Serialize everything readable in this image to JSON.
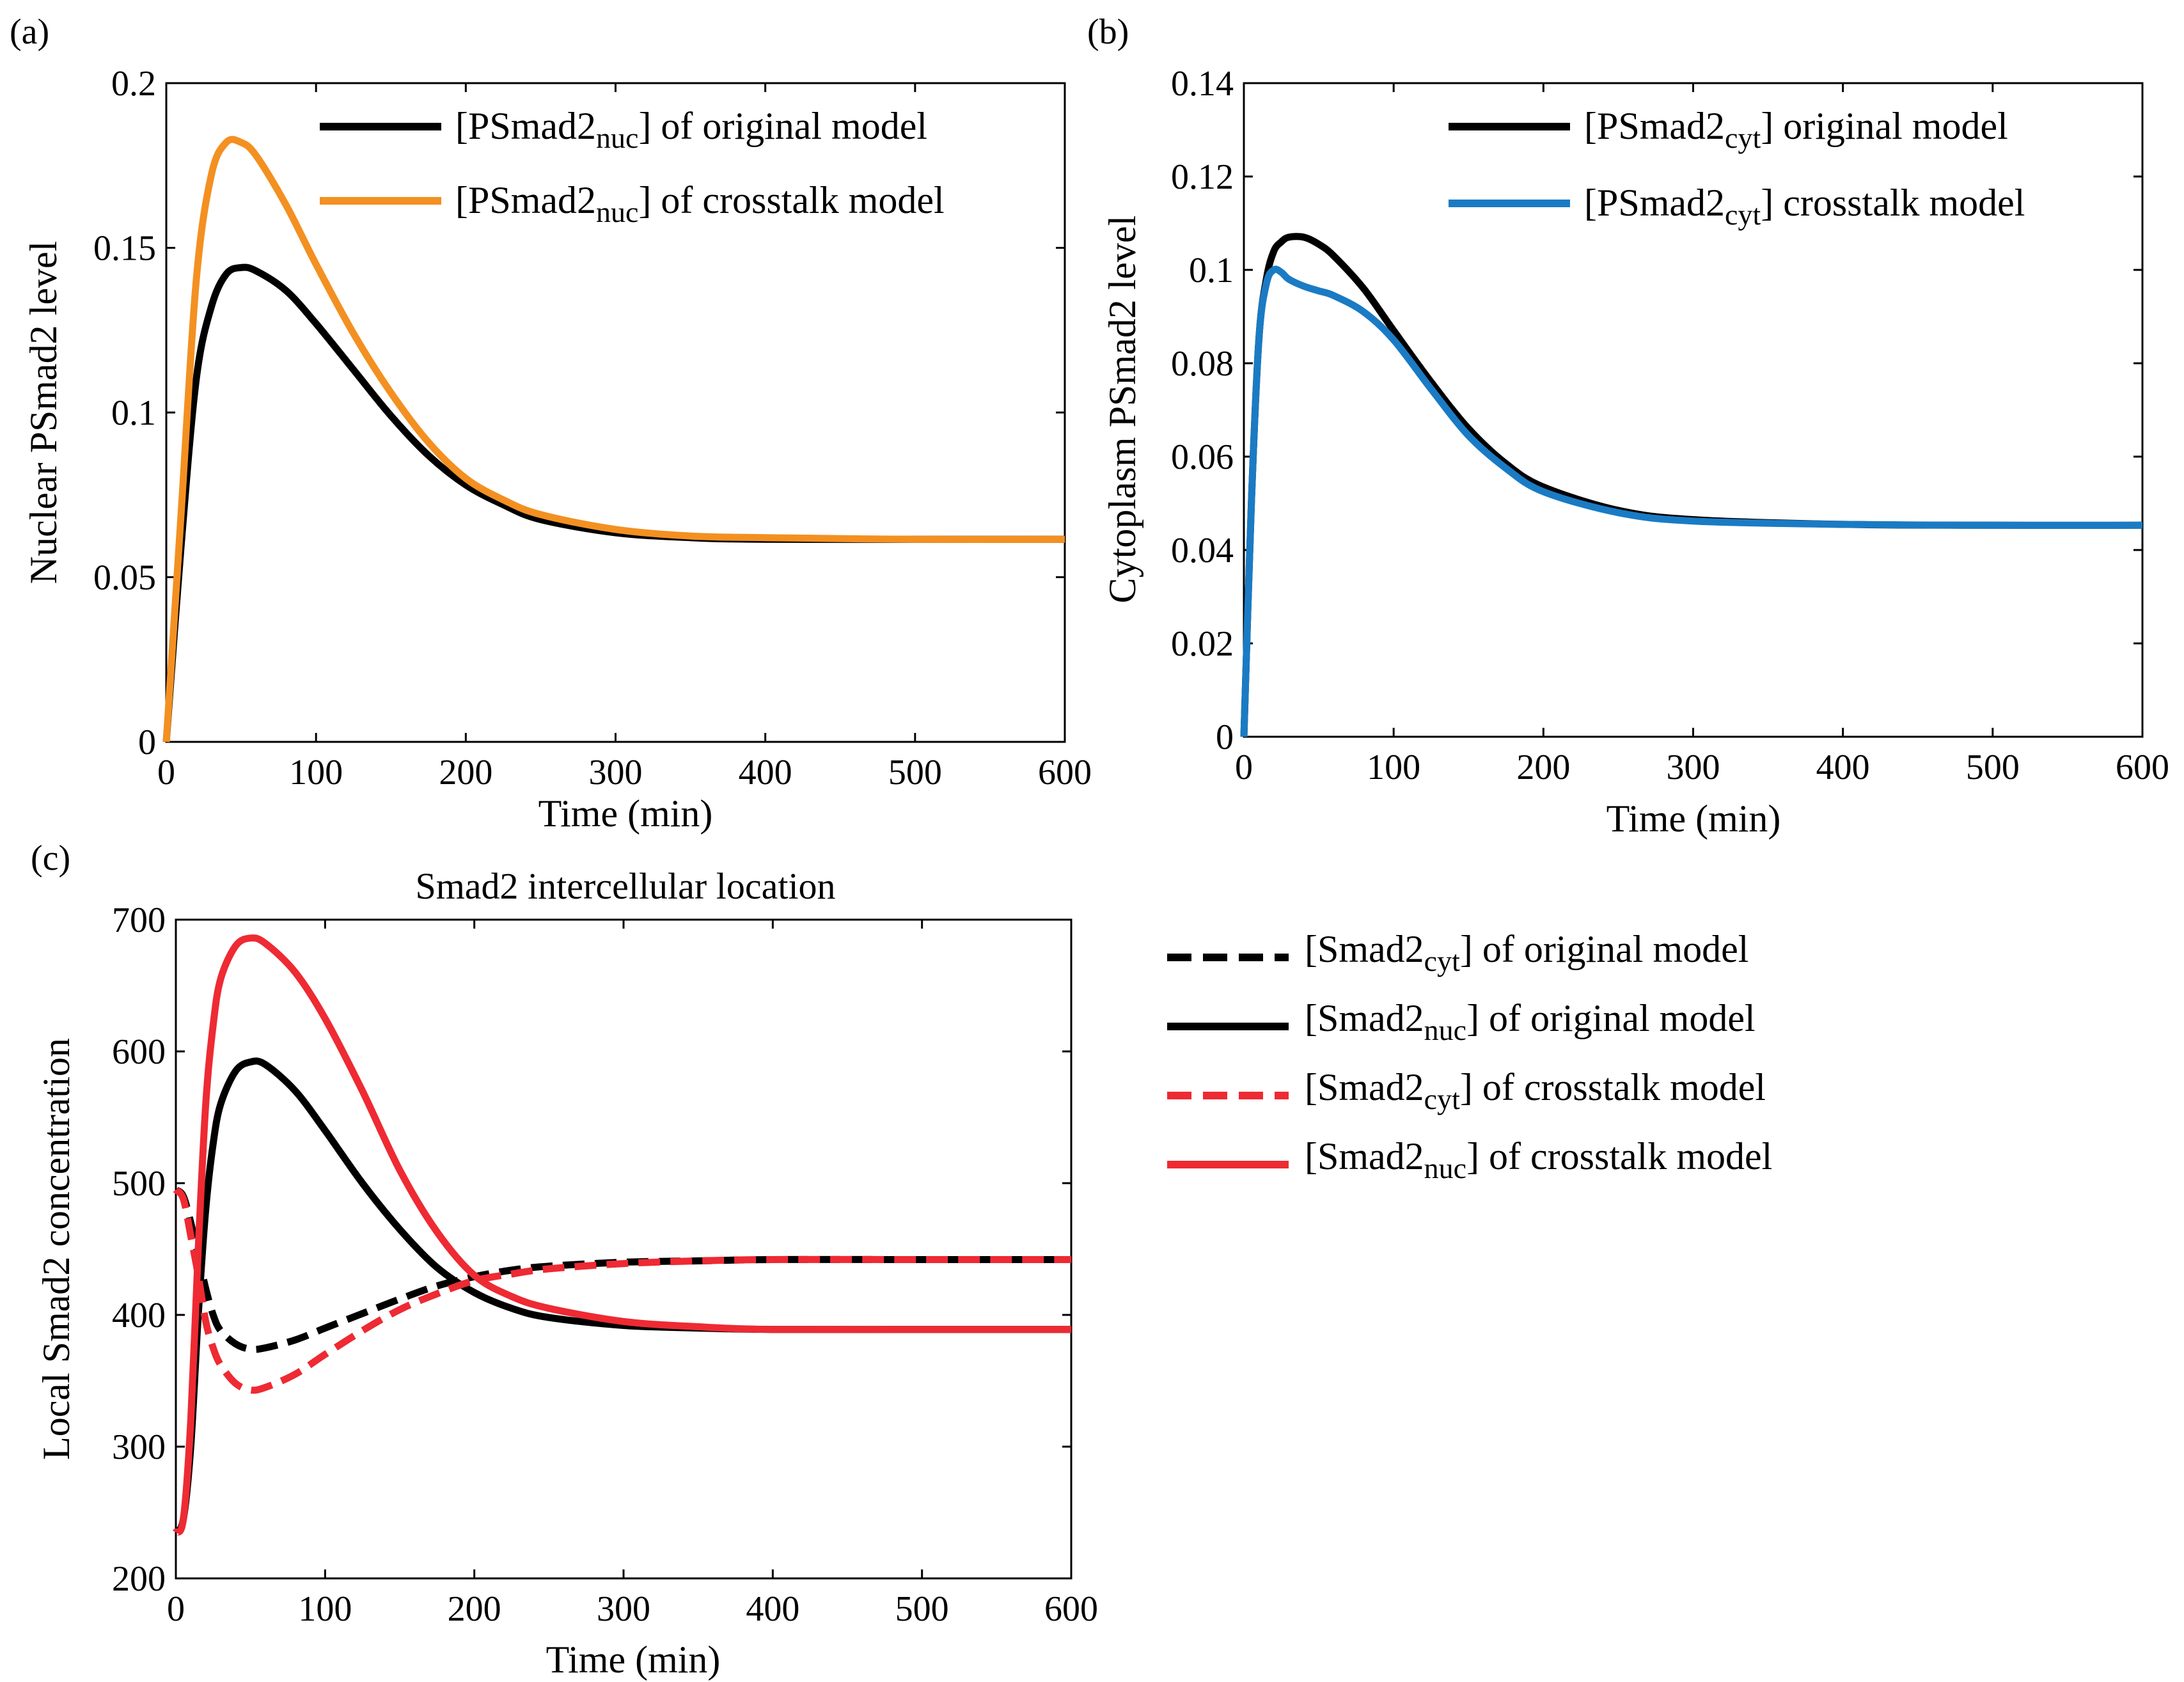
{
  "figure": {
    "panels": [
      {
        "id": "a",
        "panel_label": "(a)",
        "title": "",
        "xlabel": "Time (min)",
        "ylabel": "Nuclear PSmad2 level",
        "legend": [
          {
            "pre": "[PSmad2",
            "sub": "nuc",
            "post": "] of original model"
          },
          {
            "pre": "[PSmad2",
            "sub": "nuc",
            "post": "] of crosstalk model"
          }
        ]
      },
      {
        "id": "b",
        "panel_label": "(b)",
        "title": "",
        "xlabel": "Time (min)",
        "ylabel": "Cytoplasm PSmad2 level",
        "legend": [
          {
            "pre": "[PSmad2",
            "sub": "cyt",
            "post": "] original model"
          },
          {
            "pre": "[PSmad2",
            "sub": "cyt",
            "post": "] crosstalk model"
          }
        ]
      },
      {
        "id": "c",
        "panel_label": "(c)",
        "title": "Smad2 intercellular location",
        "xlabel": "Time (min)",
        "ylabel": "Local Smad2 concentration",
        "legend": [
          {
            "pre": "[Smad2",
            "sub": "cyt",
            "post": "] of original model"
          },
          {
            "pre": "[Smad2",
            "sub": "nuc",
            "post": "] of original model"
          },
          {
            "pre": "[Smad2",
            "sub": "cyt",
            "post": "] of crosstalk model"
          },
          {
            "pre": "[Smad2",
            "sub": "nuc",
            "post": "] of crosstalk model"
          }
        ]
      }
    ]
  },
  "chart_data": [
    {
      "panel": "a",
      "type": "line",
      "xlim": [
        0,
        600
      ],
      "ylim": [
        0,
        0.2
      ],
      "xticks": [
        0,
        100,
        200,
        300,
        400,
        500,
        600
      ],
      "yticks": [
        0,
        0.05,
        0.1,
        0.15,
        0.2
      ],
      "ytick_labels": [
        "0",
        "0.05",
        "0.1",
        "0.15",
        "0.2"
      ],
      "grid": false,
      "legend_position": "top-right",
      "series": [
        {
          "color": "#000000",
          "dash": "solid",
          "x": [
            0,
            10,
            20,
            30,
            40,
            50,
            60,
            80,
            100,
            125,
            150,
            175,
            200,
            225,
            250,
            300,
            350,
            400,
            500,
            600
          ],
          "y": [
            0,
            0.06,
            0.11,
            0.132,
            0.142,
            0.144,
            0.143,
            0.137,
            0.127,
            0.113,
            0.099,
            0.087,
            0.078,
            0.072,
            0.0675,
            0.0635,
            0.062,
            0.0615,
            0.0615,
            0.0615
          ]
        },
        {
          "color": "#F39021",
          "dash": "solid",
          "x": [
            0,
            10,
            20,
            30,
            40,
            50,
            60,
            80,
            100,
            125,
            150,
            175,
            200,
            225,
            250,
            300,
            350,
            400,
            500,
            600
          ],
          "y": [
            0,
            0.07,
            0.14,
            0.172,
            0.182,
            0.182,
            0.178,
            0.163,
            0.145,
            0.124,
            0.106,
            0.091,
            0.08,
            0.0735,
            0.069,
            0.0645,
            0.0625,
            0.062,
            0.0615,
            0.0615
          ]
        }
      ]
    },
    {
      "panel": "b",
      "type": "line",
      "xlim": [
        0,
        600
      ],
      "ylim": [
        0,
        0.14
      ],
      "xticks": [
        0,
        100,
        200,
        300,
        400,
        500,
        600
      ],
      "yticks": [
        0,
        0.02,
        0.04,
        0.06,
        0.08,
        0.1,
        0.12,
        0.14
      ],
      "ytick_labels": [
        "0",
        "0.02",
        "0.04",
        "0.06",
        "0.08",
        "0.1",
        "0.12",
        "0.14"
      ],
      "grid": false,
      "legend_position": "top-right",
      "series": [
        {
          "color": "#000000",
          "dash": "solid",
          "x": [
            0,
            5,
            10,
            15,
            20,
            25,
            30,
            40,
            50,
            60,
            80,
            100,
            125,
            150,
            175,
            200,
            250,
            300,
            400,
            500,
            600
          ],
          "y": [
            0,
            0.05,
            0.085,
            0.098,
            0.104,
            0.106,
            0.107,
            0.107,
            0.1055,
            0.103,
            0.096,
            0.087,
            0.076,
            0.066,
            0.0585,
            0.0535,
            0.0485,
            0.0465,
            0.0455,
            0.0453,
            0.0453
          ]
        },
        {
          "color": "#1A7BC4",
          "dash": "solid",
          "x": [
            0,
            5,
            10,
            15,
            20,
            25,
            30,
            40,
            50,
            60,
            80,
            100,
            125,
            150,
            175,
            200,
            250,
            300,
            400,
            500,
            600
          ],
          "y": [
            0,
            0.05,
            0.085,
            0.097,
            0.1,
            0.0995,
            0.098,
            0.0965,
            0.0955,
            0.0945,
            0.091,
            0.085,
            0.0745,
            0.0645,
            0.0575,
            0.0525,
            0.048,
            0.0462,
            0.0455,
            0.0453,
            0.0453
          ]
        }
      ]
    },
    {
      "panel": "c",
      "type": "line",
      "xlim": [
        0,
        600
      ],
      "ylim": [
        200,
        700
      ],
      "xticks": [
        0,
        100,
        200,
        300,
        400,
        500,
        600
      ],
      "yticks": [
        200,
        300,
        400,
        500,
        600,
        700
      ],
      "ytick_labels": [
        "200",
        "300",
        "400",
        "500",
        "600",
        "700"
      ],
      "grid": false,
      "legend_position": "outside-right",
      "series": [
        {
          "color": "#000000",
          "dash": "dashed",
          "x": [
            0,
            5,
            10,
            15,
            20,
            25,
            30,
            40,
            50,
            60,
            80,
            100,
            125,
            150,
            175,
            200,
            225,
            250,
            300,
            350,
            400,
            500,
            600
          ],
          "y": [
            495,
            490,
            470,
            445,
            420,
            400,
            388,
            378,
            374,
            375,
            381,
            390,
            401,
            412,
            422,
            429,
            434,
            437,
            440,
            441,
            442,
            442,
            442
          ]
        },
        {
          "color": "#000000",
          "dash": "solid",
          "x": [
            0,
            5,
            10,
            15,
            20,
            25,
            30,
            40,
            50,
            60,
            80,
            100,
            125,
            150,
            175,
            200,
            225,
            250,
            300,
            350,
            400,
            500,
            600
          ],
          "y": [
            235,
            245,
            300,
            400,
            480,
            530,
            560,
            585,
            592,
            590,
            570,
            540,
            500,
            465,
            436,
            417,
            405,
            398,
            392,
            390,
            389,
            389,
            389
          ]
        },
        {
          "color": "#EE2A33",
          "dash": "dashed",
          "x": [
            0,
            5,
            10,
            15,
            20,
            25,
            30,
            40,
            50,
            60,
            80,
            100,
            125,
            150,
            175,
            200,
            225,
            250,
            300,
            350,
            400,
            500,
            600
          ],
          "y": [
            495,
            488,
            460,
            430,
            395,
            375,
            362,
            348,
            343,
            345,
            355,
            370,
            388,
            404,
            416,
            426,
            431,
            435,
            439,
            441,
            442,
            442,
            442
          ]
        },
        {
          "color": "#EE2A33",
          "dash": "solid",
          "x": [
            0,
            5,
            10,
            15,
            20,
            25,
            30,
            40,
            50,
            60,
            80,
            100,
            125,
            150,
            175,
            200,
            225,
            250,
            300,
            350,
            400,
            500,
            600
          ],
          "y": [
            235,
            245,
            320,
            450,
            560,
            620,
            655,
            680,
            686,
            682,
            660,
            625,
            570,
            510,
            463,
            430,
            414,
            405,
            395,
            391,
            389,
            389,
            389
          ]
        }
      ]
    }
  ]
}
